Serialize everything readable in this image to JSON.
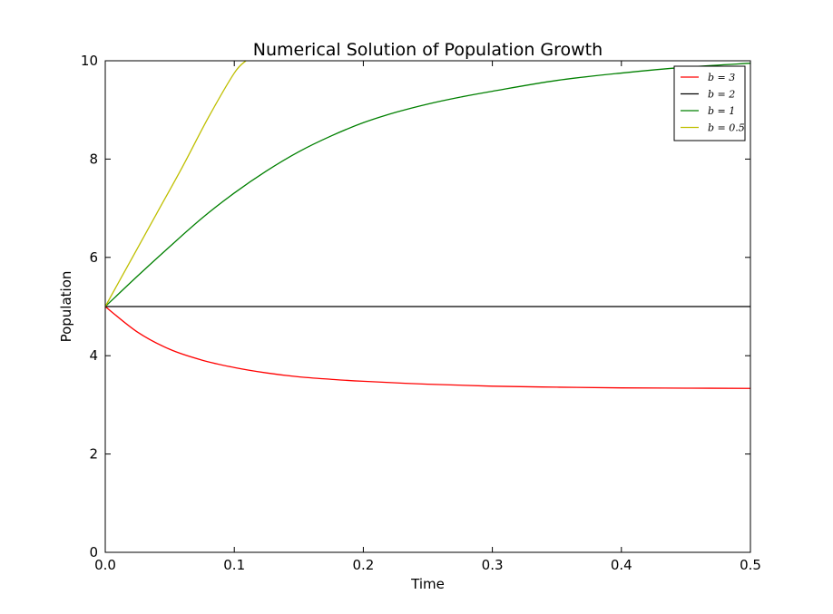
{
  "chart_data": {
    "type": "line",
    "title": "Numerical Solution of Population Growth",
    "xlabel": "Time",
    "ylabel": "Population",
    "xlim": [
      0,
      0.5
    ],
    "ylim": [
      0,
      10
    ],
    "xticks": [
      0.0,
      0.1,
      0.2,
      0.3,
      0.4,
      0.5
    ],
    "xtick_labels": [
      "0.0",
      "0.1",
      "0.2",
      "0.3",
      "0.4",
      "0.5"
    ],
    "yticks": [
      0,
      2,
      4,
      6,
      8,
      10
    ],
    "ytick_labels": [
      "0",
      "2",
      "4",
      "6",
      "8",
      "10"
    ],
    "grid": false,
    "legend": {
      "position": "top-right"
    },
    "series": [
      {
        "name": "b = 3",
        "legend_label": "b = 3",
        "color": "#ff0000",
        "x": [
          0,
          0.025,
          0.05,
          0.075,
          0.1,
          0.125,
          0.15,
          0.175,
          0.2,
          0.25,
          0.3,
          0.35,
          0.4,
          0.45,
          0.5
        ],
        "y": [
          5.0,
          4.48,
          4.13,
          3.91,
          3.76,
          3.65,
          3.57,
          3.52,
          3.48,
          3.42,
          3.38,
          3.36,
          3.345,
          3.34,
          3.335
        ]
      },
      {
        "name": "b = 2",
        "legend_label": "b = 2",
        "color": "#000000",
        "x": [
          0,
          0.5
        ],
        "y": [
          5.0,
          5.0
        ]
      },
      {
        "name": "b = 1",
        "legend_label": "b = 1",
        "color": "#008000",
        "x": [
          0,
          0.025,
          0.05,
          0.075,
          0.1,
          0.125,
          0.15,
          0.175,
          0.2,
          0.225,
          0.25,
          0.275,
          0.3,
          0.35,
          0.4,
          0.45,
          0.5
        ],
        "y": [
          5.0,
          5.62,
          6.22,
          6.8,
          7.31,
          7.76,
          8.15,
          8.47,
          8.74,
          8.95,
          9.12,
          9.26,
          9.38,
          9.6,
          9.75,
          9.87,
          9.95
        ]
      },
      {
        "name": "b = 0.5",
        "legend_label": "b = 0.5",
        "color": "#bfbf00",
        "x": [
          0,
          0.02,
          0.04,
          0.06,
          0.08,
          0.1,
          0.109
        ],
        "y": [
          5.0,
          5.95,
          6.9,
          7.85,
          8.85,
          9.75,
          10.0
        ]
      }
    ]
  }
}
